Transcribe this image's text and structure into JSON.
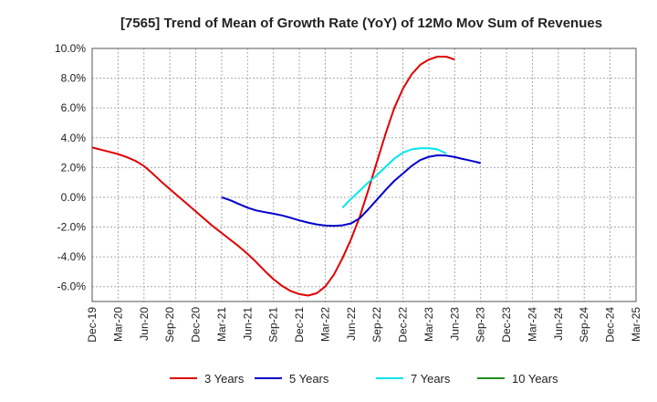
{
  "chart_data": {
    "type": "line",
    "title": "[7565]  Trend of Mean of Growth Rate (YoY) of 12Mo Mov Sum of Revenues",
    "xlabel": "",
    "ylabel": "",
    "x_ticks": [
      "Dec-19",
      "Mar-20",
      "Jun-20",
      "Sep-20",
      "Dec-20",
      "Mar-21",
      "Jun-21",
      "Sep-21",
      "Dec-21",
      "Mar-22",
      "Jun-22",
      "Sep-22",
      "Dec-22",
      "Mar-23",
      "Jun-23",
      "Sep-23",
      "Dec-23",
      "Mar-24",
      "Jun-24",
      "Sep-24",
      "Dec-24",
      "Mar-25"
    ],
    "y_ticks": [
      "10.0%",
      "8.0%",
      "6.0%",
      "4.0%",
      "2.0%",
      "0.0%",
      "-2.0%",
      "-4.0%",
      "-6.0%"
    ],
    "ylim": [
      -7.0,
      10.0
    ],
    "grid": true,
    "legend_position": "bottom",
    "series": [
      {
        "name": "3 Years",
        "color": "#e00000",
        "start_index": 0,
        "values": [
          3.35,
          3.2,
          3.05,
          2.9,
          2.7,
          2.45,
          2.1,
          1.6,
          1.05,
          0.55,
          0.05,
          -0.45,
          -0.95,
          -1.45,
          -1.95,
          -2.4,
          -2.85,
          -3.3,
          -3.8,
          -4.35,
          -4.95,
          -5.5,
          -5.95,
          -6.3,
          -6.5,
          -6.6,
          -6.45,
          -6.0,
          -5.2,
          -4.1,
          -2.8,
          -1.3,
          0.5,
          2.4,
          4.3,
          6.0,
          7.3,
          8.25,
          8.9,
          9.25,
          9.45,
          9.45,
          9.25
        ]
      },
      {
        "name": "5 Years",
        "color": "#0000cc",
        "start_index": 15,
        "values": [
          0.0,
          -0.2,
          -0.45,
          -0.7,
          -0.88,
          -1.0,
          -1.1,
          -1.22,
          -1.38,
          -1.55,
          -1.7,
          -1.82,
          -1.9,
          -1.92,
          -1.88,
          -1.75,
          -1.4,
          -0.8,
          -0.15,
          0.5,
          1.1,
          1.6,
          2.1,
          2.5,
          2.72,
          2.82,
          2.8,
          2.7,
          2.57,
          2.44,
          2.3
        ]
      },
      {
        "name": "7 Years",
        "color": "#00e5ee",
        "start_index": 29,
        "values": [
          -0.7,
          -0.1,
          0.45,
          1.0,
          1.5,
          2.05,
          2.6,
          3.0,
          3.22,
          3.3,
          3.3,
          3.22,
          2.95
        ]
      },
      {
        "name": "10 Years",
        "color": "#228b22",
        "start_index": 0,
        "values": []
      }
    ]
  }
}
